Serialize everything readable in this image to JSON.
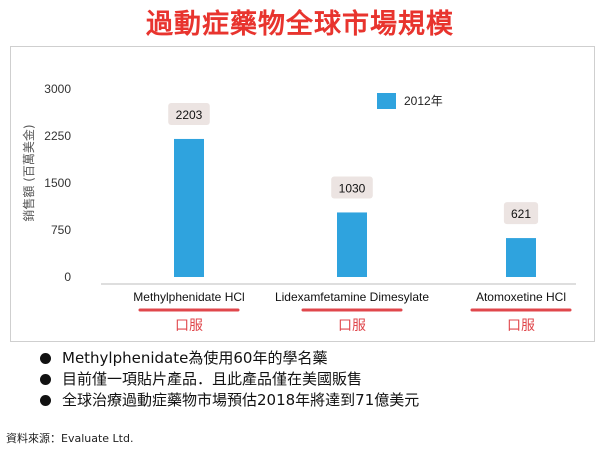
{
  "title": "過動症藥物全球市場規模",
  "chart_data": {
    "type": "bar",
    "categories": [
      "Methylphenidate HCl",
      "Lidexamfetamine Dimesylate",
      "Atomoxetine HCl"
    ],
    "routes": [
      "口服",
      "口服",
      "口服"
    ],
    "series": [
      {
        "name": "2012年",
        "values": [
          2203,
          1030,
          621
        ],
        "color": "#2fa3de"
      }
    ],
    "data_labels": [
      "2203",
      "1030",
      "621"
    ],
    "ylabel": "銷售額 (百萬美金)",
    "ylim": [
      0,
      3000
    ],
    "yticks": [
      0,
      750,
      1500,
      2250,
      3000
    ],
    "ytick_labels": [
      "0",
      "750",
      "1500",
      "2250",
      "3000"
    ],
    "legend_position": "top-right",
    "grid": false
  },
  "notes": [
    "Methylphenidate為使用60年的學名藥",
    "目前僅一項貼片產品．且此產品僅在美國販售",
    "全球治療過動症藥物市場預估2018年將達到71億美元"
  ],
  "source": "資料來源：Evaluate Ltd.",
  "colors": {
    "title": "#e8342e",
    "bar": "#2fa3de",
    "route_underline": "#e0474c",
    "label_box": "#ece4e2"
  }
}
